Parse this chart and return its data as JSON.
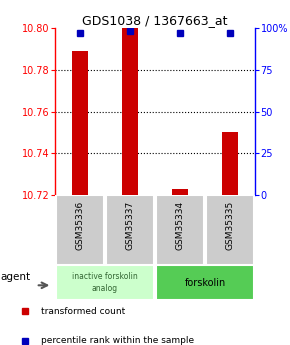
{
  "title": "GDS1038 / 1367663_at",
  "samples": [
    "GSM35336",
    "GSM35337",
    "GSM35334",
    "GSM35335"
  ],
  "bar_values": [
    10.789,
    10.8,
    10.723,
    10.75
  ],
  "percentile_values": [
    97,
    98,
    97,
    97
  ],
  "ymin": 10.72,
  "ymax": 10.8,
  "yticks": [
    10.72,
    10.74,
    10.76,
    10.78,
    10.8
  ],
  "right_ytick_vals": [
    0,
    25,
    50,
    75,
    100
  ],
  "right_tick_labels": [
    "0",
    "25",
    "50",
    "75",
    "100%"
  ],
  "bar_color": "#cc0000",
  "dot_color": "#0000bb",
  "group1_label": "inactive forskolin\nanalog",
  "group1_color": "#ccffcc",
  "group2_label": "forskolin",
  "group2_color": "#55cc55",
  "agent_label": "agent",
  "legend_red": "transformed count",
  "legend_blue": "percentile rank within the sample",
  "bar_width": 0.32,
  "sample_box_color": "#cccccc",
  "grid_line_yticks": [
    10.74,
    10.76,
    10.78
  ]
}
